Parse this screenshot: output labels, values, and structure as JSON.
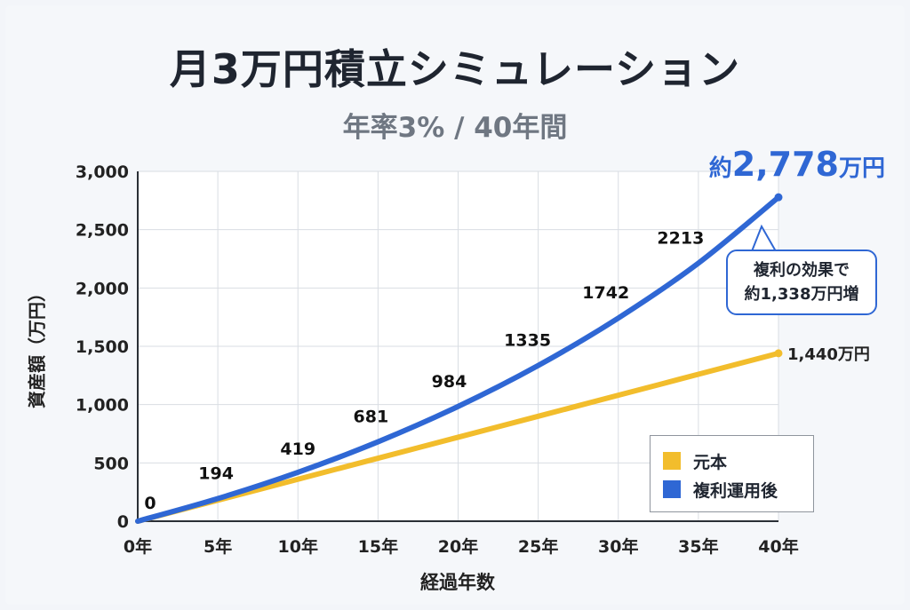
{
  "chart_data": {
    "type": "line",
    "title": "月3万円積立シミュレーション",
    "subtitle": "年率3% / 40年間",
    "xlabel": "経過年数",
    "ylabel": "資産額（万円）",
    "x": [
      0,
      5,
      10,
      15,
      20,
      25,
      30,
      35,
      40
    ],
    "x_tick_labels": [
      "0年",
      "5年",
      "10年",
      "15年",
      "20年",
      "25年",
      "30年",
      "35年",
      "40年"
    ],
    "ylim": [
      0,
      3000
    ],
    "y_ticks": [
      0,
      500,
      1000,
      1500,
      2000,
      2500,
      3000
    ],
    "y_tick_labels": [
      "0",
      "500",
      "1,000",
      "1,500",
      "2,000",
      "2,500",
      "3,000"
    ],
    "grid": true,
    "legend_position": "bottom-right",
    "series": [
      {
        "name": "元本",
        "color": "#f2bd2c",
        "values": [
          0,
          180,
          360,
          540,
          720,
          900,
          1080,
          1260,
          1440
        ],
        "end_label": "1,440万円"
      },
      {
        "name": "複利運用後",
        "color": "#2f67d4",
        "values": [
          0,
          194,
          419,
          681,
          984,
          1335,
          1742,
          2213,
          2778
        ],
        "data_labels": [
          "0",
          "194",
          "419",
          "681",
          "984",
          "1335",
          "1742",
          "2213"
        ],
        "end_label_prefix": "約",
        "end_label_value": "2,778",
        "end_label_suffix": "万円"
      }
    ],
    "annotation": {
      "line1": "複利の効果で",
      "line2": "約1,338万円増"
    }
  }
}
